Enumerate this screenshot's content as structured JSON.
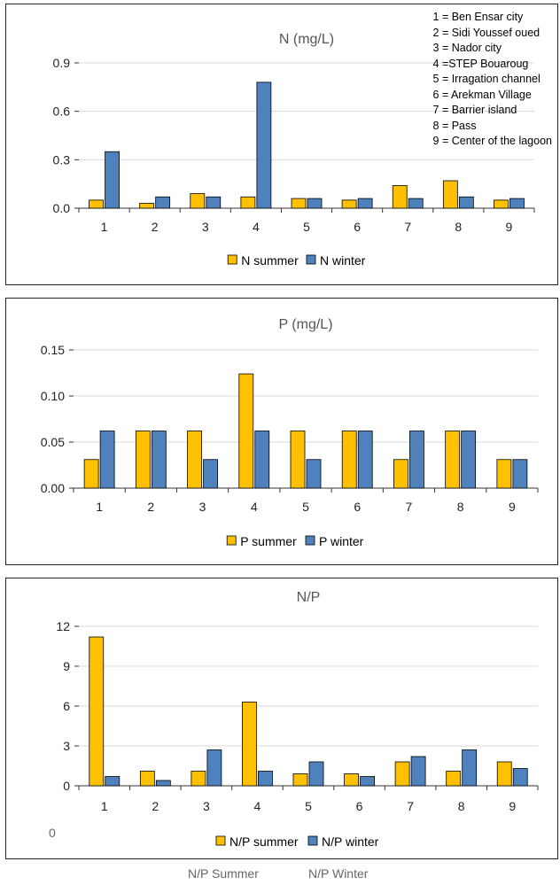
{
  "site_key": [
    "1 = Ben Ensar city",
    "2 = Sidi Youssef oued",
    "3 = Nador city",
    "4 =STEP  Bouaroug",
    "5 = Irragation channel",
    "6 = Arekman Village",
    "7 = Barrier island",
    "8 = Pass",
    "9 = Center of the lagoon"
  ],
  "stray_axis_zero": "0",
  "stray_legend": {
    "summer": "N/P Summer",
    "winter": "N/P Winter"
  },
  "colors": {
    "summer": "#FFC000",
    "winter": "#4F81BD",
    "grid": "#d9d9d9",
    "axis": "#333333",
    "bar_edge": "#000000"
  },
  "chart_data": [
    {
      "type": "bar",
      "title": "N (mg/L)",
      "categories": [
        "1",
        "2",
        "3",
        "4",
        "5",
        "6",
        "7",
        "8",
        "9"
      ],
      "series": [
        {
          "name": "N summer",
          "values": [
            0.05,
            0.03,
            0.09,
            0.07,
            0.06,
            0.05,
            0.14,
            0.17,
            0.05
          ]
        },
        {
          "name": "N winter",
          "values": [
            0.35,
            0.07,
            0.07,
            0.78,
            0.06,
            0.06,
            0.06,
            0.07,
            0.06
          ]
        }
      ],
      "ylim": [
        0,
        0.9
      ],
      "yticks": [
        "0.0",
        "0.3",
        "0.6",
        "0.9"
      ],
      "grid": true,
      "legend": "bottom"
    },
    {
      "type": "bar",
      "title": "P (mg/L)",
      "categories": [
        "1",
        "2",
        "3",
        "4",
        "5",
        "6",
        "7",
        "8",
        "9"
      ],
      "series": [
        {
          "name": "P summer",
          "values": [
            0.031,
            0.062,
            0.062,
            0.124,
            0.062,
            0.062,
            0.031,
            0.062,
            0.031
          ]
        },
        {
          "name": "P winter",
          "values": [
            0.062,
            0.062,
            0.031,
            0.062,
            0.031,
            0.062,
            0.062,
            0.062,
            0.031
          ]
        }
      ],
      "ylim": [
        0,
        0.15
      ],
      "yticks": [
        "0.00",
        "0.05",
        "0.10",
        "0.15"
      ],
      "grid": true,
      "legend": "bottom"
    },
    {
      "type": "bar",
      "title": "N/P",
      "categories": [
        "1",
        "2",
        "3",
        "4",
        "5",
        "6",
        "7",
        "8",
        "9"
      ],
      "series": [
        {
          "name": "N/P summer",
          "values": [
            11.2,
            1.1,
            1.1,
            6.3,
            0.9,
            0.9,
            1.8,
            1.1,
            1.8
          ]
        },
        {
          "name": "N/P winter",
          "values": [
            0.7,
            0.4,
            2.7,
            1.1,
            1.8,
            0.7,
            2.2,
            2.7,
            1.3
          ]
        }
      ],
      "ylim": [
        0,
        12
      ],
      "yticks": [
        "0",
        "3",
        "6",
        "9",
        "12"
      ],
      "grid": true,
      "legend": "bottom"
    }
  ]
}
